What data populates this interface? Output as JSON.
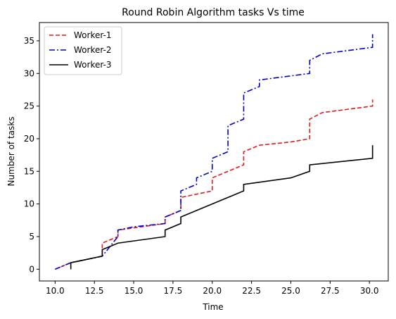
{
  "chart_data": {
    "type": "line",
    "title": "Round Robin Algorithm tasks Vs time",
    "xlabel": "Time",
    "ylabel": "Number of tasks",
    "xlim": [
      9.0,
      31.2
    ],
    "ylim": [
      -1.8,
      37.8
    ],
    "xticks": [
      10.0,
      12.5,
      15.0,
      17.5,
      20.0,
      22.5,
      25.0,
      27.5,
      30.0
    ],
    "xtick_labels": [
      "10.0",
      "12.5",
      "15.0",
      "17.5",
      "20.0",
      "22.5",
      "25.0",
      "27.5",
      "30.0"
    ],
    "yticks": [
      0,
      5,
      10,
      15,
      20,
      25,
      30,
      35
    ],
    "ytick_labels": [
      "0",
      "5",
      "10",
      "15",
      "20",
      "25",
      "30",
      "35"
    ],
    "grid": false,
    "legend_position": "top-left",
    "series": [
      {
        "name": "Worker-1",
        "color": "#e31a1c",
        "style": "dashed",
        "x": [
          10.0,
          11.0,
          13.0,
          13.0,
          14.0,
          14.0,
          17.0,
          17.0,
          18.0,
          18.0,
          20.0,
          20.0,
          22.0,
          22.0,
          23.0,
          25.0,
          26.2,
          26.2,
          27.0,
          30.2,
          30.2
        ],
        "y": [
          0,
          1,
          2,
          4,
          5,
          6,
          7,
          8,
          9,
          11,
          12,
          14,
          16,
          18,
          19,
          19.5,
          20,
          23,
          24,
          25,
          26
        ]
      },
      {
        "name": "Worker-2",
        "color": "#0000cc",
        "style": "dashdot",
        "x": [
          10.0,
          11.0,
          13.0,
          14.0,
          14.0,
          15.0,
          17.0,
          17.0,
          18.0,
          18.0,
          19.0,
          19.0,
          20.0,
          20.0,
          21.0,
          21.0,
          22.0,
          22.0,
          23.0,
          23.0,
          26.2,
          26.2,
          27.0,
          30.2,
          30.2
        ],
        "y": [
          0,
          1,
          2,
          5,
          6,
          6.5,
          7,
          8,
          9,
          12,
          13,
          14,
          15,
          17,
          18,
          22,
          23,
          27,
          28,
          29,
          30,
          32,
          33,
          34,
          36
        ]
      },
      {
        "name": "Worker-3",
        "color": "#000000",
        "style": "solid",
        "x": [
          11.0,
          11.0,
          13.0,
          13.0,
          14.0,
          17.0,
          17.0,
          18.0,
          18.0,
          20.0,
          22.0,
          22.0,
          25.0,
          26.2,
          26.2,
          30.2,
          30.2
        ],
        "y": [
          0,
          1,
          2,
          3,
          4,
          5,
          6,
          7,
          8,
          10,
          12,
          13,
          14,
          15,
          16,
          17,
          19
        ]
      }
    ]
  }
}
